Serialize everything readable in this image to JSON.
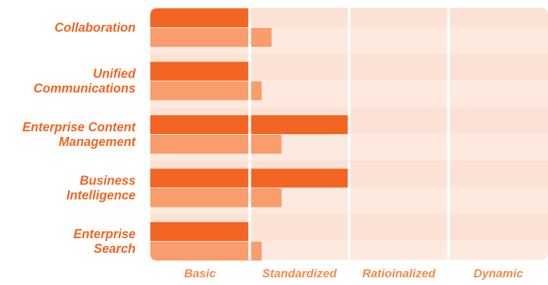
{
  "chart_data": {
    "type": "bar",
    "orientation": "horizontal",
    "categories": [
      [
        "Collaboration"
      ],
      [
        "Unified",
        "Communications"
      ],
      [
        "Enterprise Content",
        "Management"
      ],
      [
        "Business",
        "Intelligence"
      ],
      [
        "Enterprise",
        "Search"
      ]
    ],
    "series": [
      {
        "values": [
          1.0,
          1.0,
          2.0,
          2.0,
          1.0
        ]
      },
      {
        "values": [
          1.22,
          1.12,
          1.32,
          1.32,
          1.12
        ]
      }
    ],
    "x_ticks": [
      "Basic",
      "Standardized",
      "Ratioinalized",
      "Dynamic"
    ],
    "xlim": [
      0,
      4
    ],
    "grid": "vertical",
    "legend": "none",
    "colors": {
      "series": [
        "#f26522",
        "#f89d6b"
      ],
      "band_odd": "#fce2d4",
      "band_even": "#fde9de",
      "text": "#f26522",
      "tick_text": "#f58a4a"
    }
  }
}
